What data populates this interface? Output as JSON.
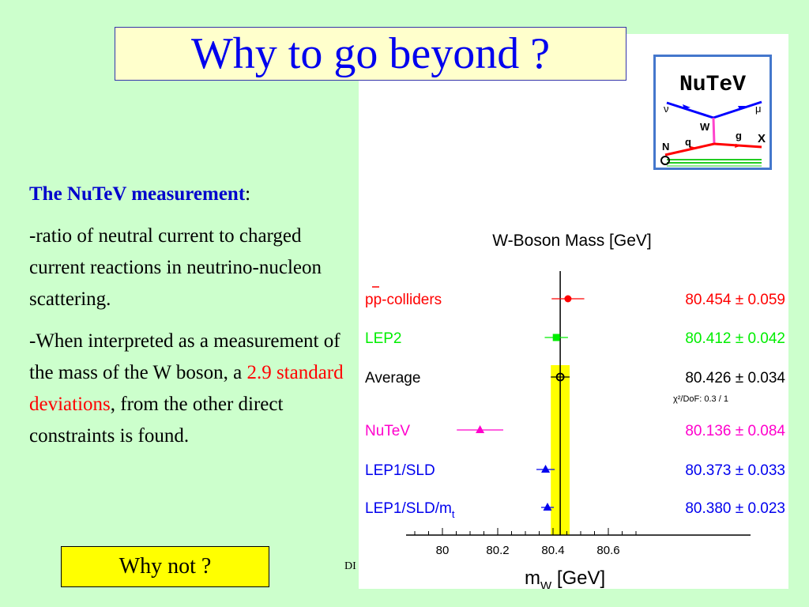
{
  "slide": {
    "title": "Why to go beyond ?",
    "heading": "The NuTeV measurement",
    "heading_suffix": ":",
    "para1": "-ratio of neutral current to charged current reactions in neutrino-nucleon scattering.",
    "para2_a": "-When interpreted as a measurement of the mass of the W boson, a ",
    "para2_highlight": "2.9 standard deviations",
    "para2_b": ", from the other direct  constraints is found.",
    "why_not": "Why not ?",
    "footer_fragment": "DI"
  },
  "logo": {
    "title": "NuTeV",
    "labels": [
      "ν",
      "μ",
      "W",
      "q",
      "g",
      "N",
      "X"
    ],
    "colors": {
      "neutrino": "#0000ff",
      "boson": "#ff44cc",
      "quark": "#ff0000",
      "target": "#22cc22"
    }
  },
  "chart_data": {
    "type": "scatter",
    "title": "W-Boson Mass  [GeV]",
    "xlabel": "m",
    "xlabel_sub": "W",
    "xunit": "[GeV]",
    "xlim": [
      79.9,
      80.75
    ],
    "xticks": [
      80,
      80.2,
      80.4,
      80.6
    ],
    "xtick_labels": [
      "80",
      "80.2",
      "80.4",
      "80.6"
    ],
    "band": {
      "center": 80.426,
      "error": 0.034,
      "color": "#ffff00"
    },
    "chi2_note": "χ²/DoF: 0.3 / 1",
    "measurements": [
      {
        "name": "pp-colliders",
        "value": 80.454,
        "error": 0.059,
        "label": "80.454 ± 0.059",
        "color": "#ff0000",
        "marker": "circle"
      },
      {
        "name": "LEP2",
        "value": 80.412,
        "error": 0.042,
        "label": "80.412 ± 0.042",
        "color": "#00ee00",
        "marker": "square"
      },
      {
        "name": "Average",
        "value": 80.426,
        "error": 0.034,
        "label": "80.426 ± 0.034",
        "color": "#000000",
        "marker": "open-circle"
      },
      {
        "name": "NuTeV",
        "value": 80.136,
        "error": 0.084,
        "label": "80.136 ± 0.084",
        "color": "#ff00cc",
        "marker": "triangle"
      },
      {
        "name": "LEP1/SLD",
        "value": 80.373,
        "error": 0.033,
        "label": "80.373 ± 0.033",
        "color": "#0000ee",
        "marker": "triangle"
      },
      {
        "name": "LEP1/SLD/m",
        "name_sub": "t",
        "value": 80.38,
        "error": 0.023,
        "label": "80.380 ± 0.023",
        "color": "#0000ee",
        "marker": "triangle"
      }
    ]
  }
}
